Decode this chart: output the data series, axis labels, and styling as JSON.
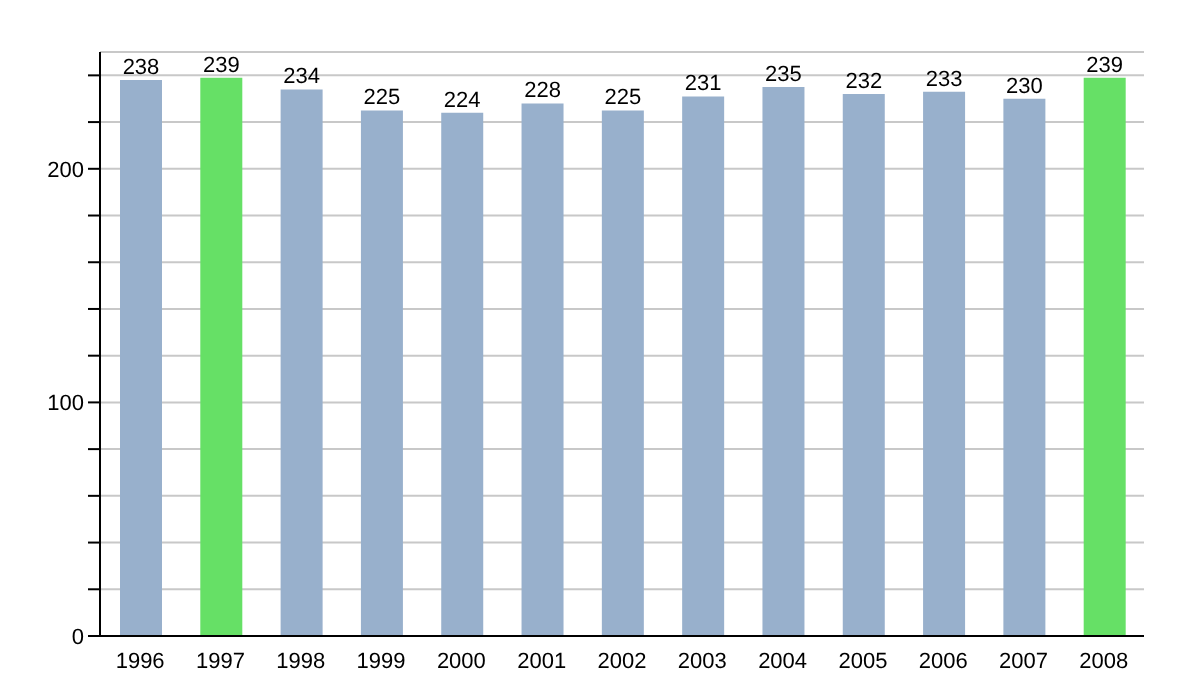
{
  "chart_data": {
    "type": "bar",
    "categories": [
      "1996",
      "1997",
      "1998",
      "1999",
      "2000",
      "2001",
      "2002",
      "2003",
      "2004",
      "2005",
      "2006",
      "2007",
      "2008"
    ],
    "values": [
      238,
      239,
      234,
      225,
      224,
      228,
      225,
      231,
      235,
      232,
      233,
      230,
      239
    ],
    "colors": [
      "#98b0cc",
      "#66e066",
      "#98b0cc",
      "#98b0cc",
      "#98b0cc",
      "#98b0cc",
      "#98b0cc",
      "#98b0cc",
      "#98b0cc",
      "#98b0cc",
      "#98b0cc",
      "#98b0cc",
      "#66e066"
    ],
    "ylim": [
      0,
      250
    ],
    "yticks": [
      0,
      {
        "value": 20,
        "label": null
      },
      {
        "value": 40,
        "label": null
      },
      {
        "value": 60,
        "label": null
      },
      {
        "value": 80,
        "label": null
      },
      100,
      {
        "value": 120,
        "label": null
      },
      {
        "value": 140,
        "label": null
      },
      {
        "value": 160,
        "label": null
      },
      {
        "value": 180,
        "label": null
      },
      200,
      {
        "value": 220,
        "label": null
      },
      {
        "value": 240,
        "label": null
      }
    ],
    "grid": "y",
    "data_labels": true,
    "legend": false
  }
}
